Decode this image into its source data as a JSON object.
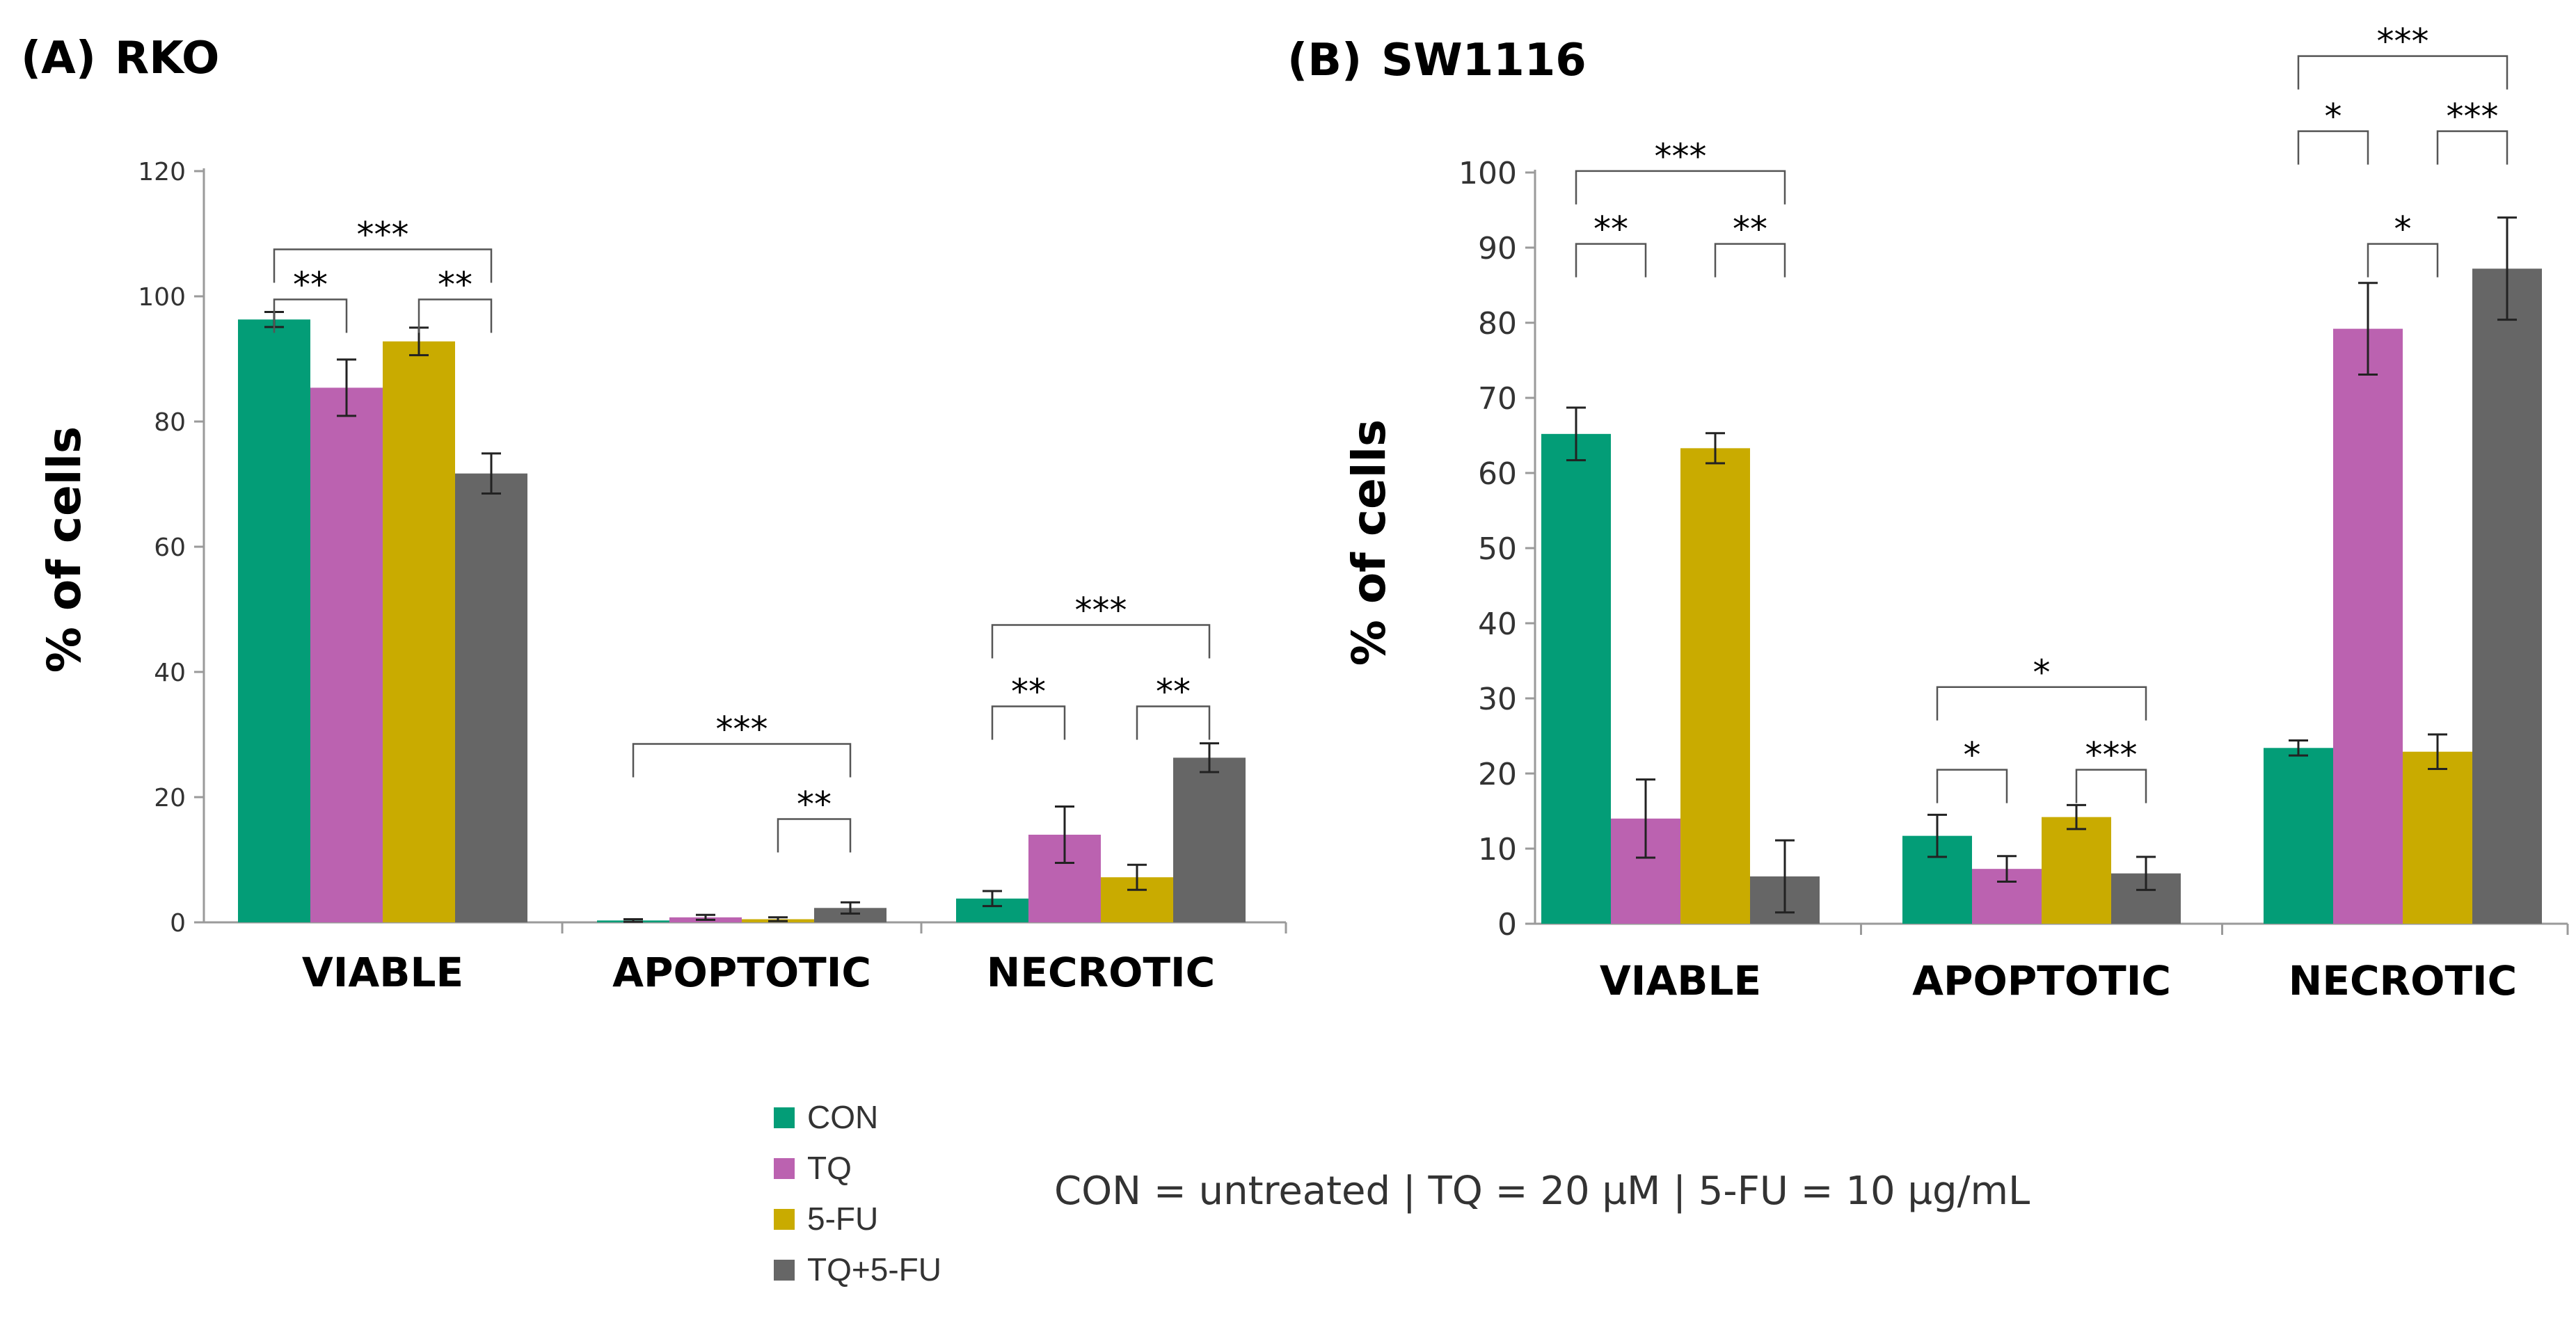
{
  "colors": {
    "CON": "#039d77",
    "TQ": "#bb62b0",
    "5-FU": "#c9ab00",
    "TQ+5-FU": "#666666",
    "axis": "#9a9a9a",
    "text": "#000000",
    "bracket": "#555555"
  },
  "legend": [
    "CON",
    "TQ",
    "5-FU",
    "TQ+5-FU"
  ],
  "note": "CON = untreated | TQ = 20 µM |  5-FU = 10 µg/mL",
  "chart_data": [
    {
      "type": "bar",
      "panel_label": "(A)",
      "title": "RKO",
      "ylabel": "% of cells",
      "categories": [
        "VIABLE",
        "APOPTOTIC",
        "NECROTIC"
      ],
      "ylim": [
        0,
        120
      ],
      "yticks": [
        0,
        20,
        40,
        60,
        80,
        100,
        120
      ],
      "series": [
        {
          "name": "CON",
          "values": [
            96.3,
            0.3,
            3.8
          ],
          "errors": [
            1.2,
            0.2,
            1.2
          ]
        },
        {
          "name": "TQ",
          "values": [
            85.4,
            0.8,
            14.0
          ],
          "errors": [
            4.5,
            0.4,
            4.5
          ]
        },
        {
          "name": "5-FU",
          "values": [
            92.8,
            0.5,
            7.2
          ],
          "errors": [
            2.2,
            0.3,
            2.0
          ]
        },
        {
          "name": "TQ+5-FU",
          "values": [
            71.7,
            2.3,
            26.3
          ],
          "errors": [
            3.2,
            0.9,
            2.3
          ]
        }
      ],
      "significance": [
        {
          "category": "VIABLE",
          "from": "CON",
          "to": "TQ+5-FU",
          "label": "***",
          "y": 107.5
        },
        {
          "category": "VIABLE",
          "from": "CON",
          "to": "TQ",
          "label": "**",
          "y": 99.5
        },
        {
          "category": "VIABLE",
          "from": "5-FU",
          "to": "TQ+5-FU",
          "label": "**",
          "y": 99.5
        },
        {
          "category": "APOPTOTIC",
          "from": "CON",
          "to": "TQ+5-FU",
          "label": "***",
          "y": 28.5
        },
        {
          "category": "APOPTOTIC",
          "from": "5-FU",
          "to": "TQ+5-FU",
          "label": "**",
          "y": 16.5
        },
        {
          "category": "NECROTIC",
          "from": "CON",
          "to": "TQ+5-FU",
          "label": "***",
          "y": 47.5
        },
        {
          "category": "NECROTIC",
          "from": "CON",
          "to": "TQ",
          "label": "**",
          "y": 34.5
        },
        {
          "category": "NECROTIC",
          "from": "5-FU",
          "to": "TQ+5-FU",
          "label": "**",
          "y": 34.5
        }
      ]
    },
    {
      "type": "bar",
      "panel_label": "(B)",
      "title": "SW1116",
      "ylabel": "% of cells",
      "categories": [
        "VIABLE",
        "APOPTOTIC",
        "NECROTIC"
      ],
      "ylim": [
        0,
        100
      ],
      "yticks": [
        0,
        10,
        20,
        30,
        40,
        50,
        60,
        70,
        80,
        90,
        100
      ],
      "series": [
        {
          "name": "CON",
          "values": [
            65.2,
            11.7,
            23.4
          ],
          "errors": [
            3.5,
            2.8,
            1.0
          ]
        },
        {
          "name": "TQ",
          "values": [
            14.0,
            7.3,
            79.2
          ],
          "errors": [
            5.2,
            1.7,
            6.1
          ]
        },
        {
          "name": "5-FU",
          "values": [
            63.3,
            14.2,
            22.9
          ],
          "errors": [
            2.0,
            1.6,
            2.3
          ]
        },
        {
          "name": "TQ+5-FU",
          "values": [
            6.3,
            6.7,
            87.2
          ],
          "errors": [
            4.8,
            2.2,
            6.8
          ]
        }
      ],
      "significance": [
        {
          "category": "VIABLE",
          "from": "CON",
          "to": "TQ+5-FU",
          "label": "***",
          "y": 100.2
        },
        {
          "category": "VIABLE",
          "from": "CON",
          "to": "TQ",
          "label": "**",
          "y": 90.5
        },
        {
          "category": "VIABLE",
          "from": "5-FU",
          "to": "TQ+5-FU",
          "label": "**",
          "y": 90.5
        },
        {
          "category": "APOPTOTIC",
          "from": "CON",
          "to": "TQ+5-FU",
          "label": "*",
          "y": 31.5
        },
        {
          "category": "APOPTOTIC",
          "from": "CON",
          "to": "TQ",
          "label": "*",
          "y": 20.5
        },
        {
          "category": "APOPTOTIC",
          "from": "5-FU",
          "to": "TQ+5-FU",
          "label": "***",
          "y": 20.5
        },
        {
          "category": "NECROTIC",
          "from": "CON",
          "to": "TQ+5-FU",
          "label": "***",
          "y": 115.5
        },
        {
          "category": "NECROTIC",
          "from": "CON",
          "to": "TQ",
          "label": "*",
          "y": 105.5
        },
        {
          "category": "NECROTIC",
          "from": "5-FU",
          "to": "TQ+5-FU",
          "label": "***",
          "y": 105.5
        },
        {
          "category": "NECROTIC",
          "from": "TQ",
          "to": "5-FU",
          "label": "*",
          "y": 90.5
        }
      ]
    }
  ]
}
